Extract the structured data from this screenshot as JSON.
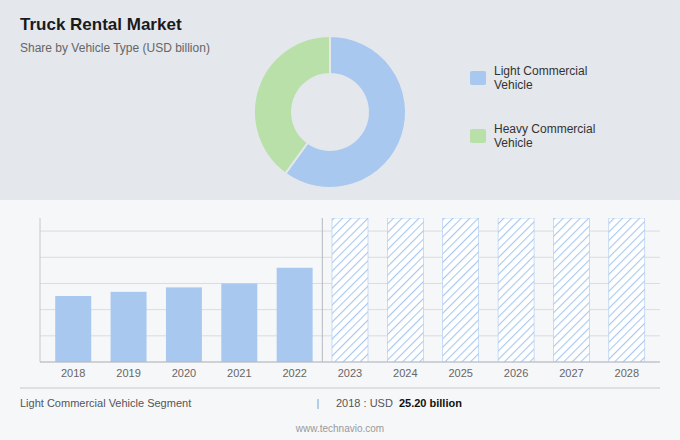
{
  "chart_data": [
    {
      "type": "donut",
      "title": "Truck Rental Market",
      "subtitle": "Share by Vehicle Type (USD billion)",
      "categories": [
        "Light Commercial\nVehicle",
        "Heavy Commercial\nVehicle"
      ],
      "values": [
        60,
        40
      ],
      "colors": [
        "#a8c8f0",
        "#b8e0a8"
      ],
      "legend": "right"
    },
    {
      "type": "bar",
      "x": [
        2018,
        2019,
        2020,
        2021,
        2022,
        2023,
        2024,
        2025,
        2026,
        2027,
        2028
      ],
      "xlim": [
        2017.4,
        2028.6
      ],
      "xticks": [
        2018,
        2019,
        2020,
        2021,
        2022,
        2023,
        2024,
        2025,
        2026,
        2027,
        2028
      ],
      "ylim": [
        0,
        55
      ],
      "yticks": [
        0,
        10,
        20,
        30,
        40,
        50
      ],
      "grid": true,
      "tick_labels": "x",
      "series": [
        {
          "color": "#a8c8f0",
          "values": [
            25.2,
            26.8,
            28.5,
            30.0,
            36.0,
            null,
            null,
            null,
            null,
            null,
            null
          ]
        },
        {
          "color": "#a8c8f0",
          "values": [
            null,
            null,
            null,
            null,
            null,
            55,
            55,
            55,
            55,
            55,
            55
          ]
        }
      ],
      "annotations": [
        "Light Commercial Vehicle Segment",
        "|",
        "2018 : USD ",
        "25.20 billion",
        "www.technavio.com"
      ]
    }
  ]
}
